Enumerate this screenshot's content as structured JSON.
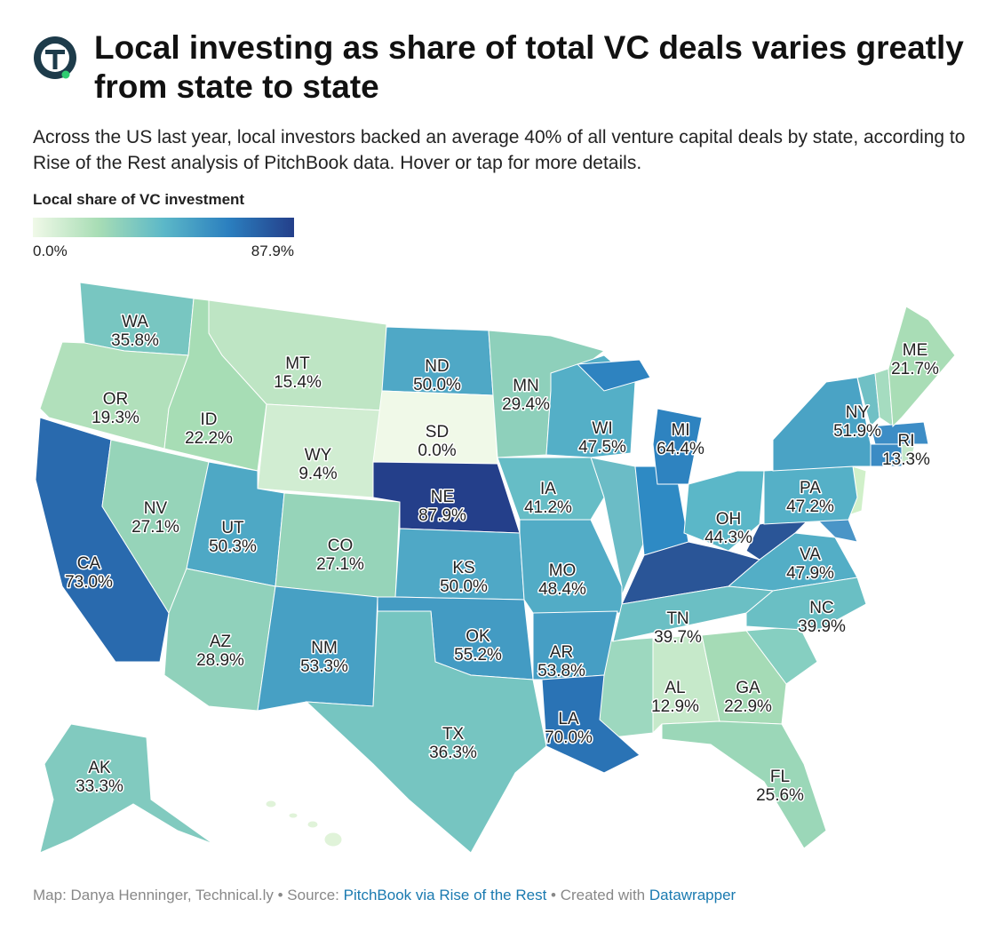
{
  "header": {
    "title": "Local investing as share of total VC deals varies greatly from state to state",
    "subtitle": "Across the US last year, local investors backed an average 40% of all venture capital deals by state, according to Rise of the Rest analysis of PitchBook data. Hover or tap for more details."
  },
  "legend": {
    "title": "Local share of VC investment",
    "min": {
      "value": 0,
      "label": "0.0%"
    },
    "max": {
      "value": 87.9,
      "label": "87.9%"
    }
  },
  "states": [
    {
      "abbr": "WA",
      "value": 35.8,
      "label": "35.8%"
    },
    {
      "abbr": "OR",
      "value": 19.3,
      "label": "19.3%"
    },
    {
      "abbr": "CA",
      "value": 73.0,
      "label": "73.0%"
    },
    {
      "abbr": "NV",
      "value": 27.1,
      "label": "27.1%"
    },
    {
      "abbr": "ID",
      "value": 22.2,
      "label": "22.2%"
    },
    {
      "abbr": "MT",
      "value": 15.4,
      "label": "15.4%"
    },
    {
      "abbr": "WY",
      "value": 9.4,
      "label": "9.4%"
    },
    {
      "abbr": "UT",
      "value": 50.3,
      "label": "50.3%"
    },
    {
      "abbr": "AZ",
      "value": 28.9,
      "label": "28.9%"
    },
    {
      "abbr": "CO",
      "value": 27.1,
      "label": "27.1%"
    },
    {
      "abbr": "NM",
      "value": 53.3,
      "label": "53.3%"
    },
    {
      "abbr": "ND",
      "value": 50.0,
      "label": "50.0%"
    },
    {
      "abbr": "SD",
      "value": 0.0,
      "label": "0.0%"
    },
    {
      "abbr": "NE",
      "value": 87.9,
      "label": "87.9%"
    },
    {
      "abbr": "KS",
      "value": 50.0,
      "label": "50.0%"
    },
    {
      "abbr": "OK",
      "value": 55.2,
      "label": "55.2%"
    },
    {
      "abbr": "TX",
      "value": 36.3,
      "label": "36.3%"
    },
    {
      "abbr": "MN",
      "value": 29.4,
      "label": "29.4%"
    },
    {
      "abbr": "IA",
      "value": 41.2,
      "label": "41.2%"
    },
    {
      "abbr": "MO",
      "value": 48.4,
      "label": "48.4%"
    },
    {
      "abbr": "AR",
      "value": 53.8,
      "label": "53.8%"
    },
    {
      "abbr": "LA",
      "value": 70.0,
      "label": "70.0%"
    },
    {
      "abbr": "WI",
      "value": 47.5,
      "label": "47.5%"
    },
    {
      "abbr": "MI",
      "value": 64.4,
      "label": "64.4%"
    },
    {
      "abbr": "OH",
      "value": 44.3,
      "label": "44.3%"
    },
    {
      "abbr": "PA",
      "value": 47.2,
      "label": "47.2%"
    },
    {
      "abbr": "VA",
      "value": 47.9,
      "label": "47.9%"
    },
    {
      "abbr": "NC",
      "value": 39.9,
      "label": "39.9%"
    },
    {
      "abbr": "TN",
      "value": 39.7,
      "label": "39.7%"
    },
    {
      "abbr": "AL",
      "value": 12.9,
      "label": "12.9%"
    },
    {
      "abbr": "GA",
      "value": 22.9,
      "label": "22.9%"
    },
    {
      "abbr": "FL",
      "value": 25.6,
      "label": "25.6%"
    },
    {
      "abbr": "NY",
      "value": 51.9,
      "label": "51.9%"
    },
    {
      "abbr": "RI",
      "value": 13.3,
      "label": "13.3%"
    },
    {
      "abbr": "ME",
      "value": 21.7,
      "label": "21.7%"
    },
    {
      "abbr": "AK",
      "value": 33.3,
      "label": "33.3%"
    }
  ],
  "footer": {
    "byline": "Map: Danya Henninger, Technical.ly • Source:",
    "source": "PitchBook via Rise of the Rest",
    "created": "• Created with",
    "tool": "Datawrapper"
  }
}
